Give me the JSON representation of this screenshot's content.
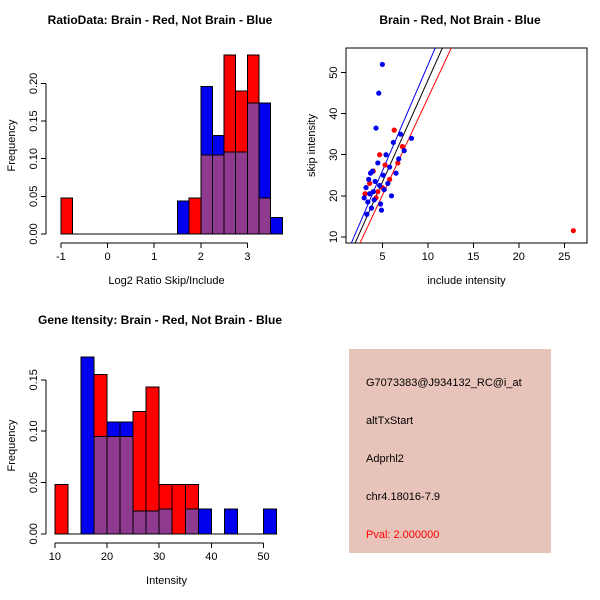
{
  "colors": {
    "red": "#FF0000",
    "blue": "#0000EE",
    "overlap": "#8E3A8E",
    "black": "#000000",
    "info_bg": "#E8C3B9",
    "pval": "#FF0000"
  },
  "chart_data": [
    {
      "id": "ratio-histogram",
      "type": "bar",
      "subtype": "overlaid-histogram",
      "title": "RatioData: Brain - Red, Not Brain - Blue",
      "xlabel": "Log2 Ratio Skip/Include",
      "ylabel": "Frequency",
      "xlim": [
        -1.32,
        3.85
      ],
      "ylim": [
        -0.012,
        0.247
      ],
      "xticks": [
        -1,
        0,
        1,
        2,
        3
      ],
      "xtick_labels": [
        "-1",
        "0",
        "1",
        "2",
        "3"
      ],
      "yticks": [
        0,
        0.05,
        0.1,
        0.15,
        0.2
      ],
      "ytick_labels": [
        "0.00",
        "0.05",
        "0.10",
        "0.15",
        "0.20"
      ],
      "bin_width": 0.25,
      "baseline_extent": [
        -1,
        3.75
      ],
      "legend": [
        {
          "name": "Brain",
          "color_key": "red"
        },
        {
          "name": "Not Brain",
          "color_key": "blue"
        }
      ],
      "series": [
        {
          "name": "Brain",
          "color_key": "red",
          "bins": [
            [
              -1.0,
              0.048
            ],
            [
              1.75,
              0.048
            ],
            [
              2.0,
              0.105
            ],
            [
              2.25,
              0.105
            ],
            [
              2.5,
              0.238
            ],
            [
              2.75,
              0.19
            ],
            [
              3.0,
              0.238
            ],
            [
              3.25,
              0.048
            ]
          ]
        },
        {
          "name": "Not Brain",
          "color_key": "blue",
          "bins": [
            [
              1.5,
              0.044
            ],
            [
              2.0,
              0.196
            ],
            [
              2.25,
              0.131
            ],
            [
              2.5,
              0.109
            ],
            [
              2.75,
              0.109
            ],
            [
              3.0,
              0.174
            ],
            [
              3.25,
              0.174
            ],
            [
              3.5,
              0.022
            ]
          ]
        }
      ]
    },
    {
      "id": "skip-include-scatter",
      "type": "scatter",
      "title": "Brain - Red, Not Brain - Blue",
      "xlabel": "include intensity",
      "ylabel": "skip intensity",
      "xlim": [
        1.0,
        27.5
      ],
      "ylim": [
        8.5,
        56.0
      ],
      "xticks": [
        5,
        10,
        15,
        20,
        25
      ],
      "xtick_labels": [
        "5",
        "10",
        "15",
        "20",
        "25"
      ],
      "yticks": [
        10,
        20,
        30,
        40,
        50
      ],
      "ytick_labels": [
        "10",
        "20",
        "30",
        "40",
        "50"
      ],
      "box": true,
      "series": [
        {
          "name": "Brain",
          "color_key": "red",
          "points": [
            [
              3.1,
              20.5
            ],
            [
              3.6,
              23
            ],
            [
              4.0,
              26
            ],
            [
              4.3,
              19.5
            ],
            [
              4.5,
              21
            ],
            [
              4.7,
              30
            ],
            [
              5.0,
              22
            ],
            [
              5.3,
              27.5
            ],
            [
              5.8,
              24
            ],
            [
              6.3,
              36
            ],
            [
              6.7,
              28
            ],
            [
              7.2,
              32
            ],
            [
              26.0,
              11.5
            ]
          ]
        },
        {
          "name": "Not Brain",
          "color_key": "blue",
          "points": [
            [
              3.0,
              19.5
            ],
            [
              3.2,
              22
            ],
            [
              3.3,
              15.5
            ],
            [
              3.4,
              18.5
            ],
            [
              3.5,
              24
            ],
            [
              3.6,
              20.5
            ],
            [
              3.7,
              25.5
            ],
            [
              3.8,
              17
            ],
            [
              3.9,
              26
            ],
            [
              4.0,
              21
            ],
            [
              4.1,
              19
            ],
            [
              4.2,
              23.5
            ],
            [
              4.3,
              36.5
            ],
            [
              4.5,
              28
            ],
            [
              4.6,
              45
            ],
            [
              4.7,
              22.5
            ],
            [
              4.8,
              18
            ],
            [
              4.9,
              16.5
            ],
            [
              5.0,
              52
            ],
            [
              5.1,
              25
            ],
            [
              5.2,
              21.5
            ],
            [
              5.4,
              30
            ],
            [
              5.6,
              23
            ],
            [
              5.8,
              27
            ],
            [
              6.0,
              20
            ],
            [
              6.2,
              33
            ],
            [
              6.5,
              25.5
            ],
            [
              6.8,
              29
            ],
            [
              7.0,
              35
            ],
            [
              7.4,
              31
            ],
            [
              8.2,
              34
            ]
          ]
        }
      ],
      "lines": [
        {
          "name": "fit-black",
          "color_key": "black",
          "x1": 1.5,
          "y1": 6,
          "x2": 12.0,
          "y2": 58
        },
        {
          "name": "fit-red",
          "color_key": "red",
          "x1": 1.8,
          "y1": 5,
          "x2": 13.0,
          "y2": 58
        },
        {
          "name": "fit-blue",
          "color_key": "blue",
          "x1": 1.3,
          "y1": 7,
          "x2": 11.2,
          "y2": 58
        }
      ]
    },
    {
      "id": "gene-intensity-histogram",
      "type": "bar",
      "subtype": "overlaid-histogram",
      "title": "Gene Itensity: Brain - Red, Not Brain - Blue",
      "xlabel": "Intensity",
      "ylabel": "Frequency",
      "xlim": [
        8.3,
        54.5
      ],
      "ylim": [
        -0.009,
        0.181
      ],
      "xticks": [
        10,
        20,
        30,
        40,
        50
      ],
      "xtick_labels": [
        "10",
        "20",
        "30",
        "40",
        "50"
      ],
      "yticks": [
        0,
        0.05,
        0.1,
        0.15
      ],
      "ytick_labels": [
        "0.00",
        "0.05",
        "0.10",
        "0.15"
      ],
      "bin_width": 2.5,
      "baseline_extent": [
        10,
        52.5
      ],
      "series": [
        {
          "name": "Brain",
          "color_key": "red",
          "bins": [
            [
              10,
              0.048
            ],
            [
              17.5,
              0.155
            ],
            [
              20,
              0.095
            ],
            [
              22.5,
              0.095
            ],
            [
              25,
              0.119
            ],
            [
              27.5,
              0.143
            ],
            [
              30,
              0.048
            ],
            [
              32.5,
              0.048
            ],
            [
              35,
              0.048
            ]
          ]
        },
        {
          "name": "Not Brain",
          "color_key": "blue",
          "bins": [
            [
              15,
              0.172
            ],
            [
              17.5,
              0.095
            ],
            [
              20,
              0.109
            ],
            [
              22.5,
              0.109
            ],
            [
              25,
              0.022
            ],
            [
              27.5,
              0.022
            ],
            [
              30,
              0.024
            ],
            [
              35,
              0.024
            ],
            [
              37.5,
              0.024
            ],
            [
              42.5,
              0.024
            ],
            [
              50,
              0.024
            ]
          ]
        }
      ]
    }
  ],
  "info_box": {
    "lines": [
      {
        "name": "probe-id",
        "text": "G7073383@J934132_RC@i_at"
      },
      {
        "name": "event-type",
        "text": "altTxStart"
      },
      {
        "name": "gene-symbol",
        "text": "Adprhl2"
      },
      {
        "name": "locus",
        "text": "chr4.18016-7.9"
      },
      {
        "name": "pval",
        "text": "Pval: 2.000000"
      }
    ]
  }
}
